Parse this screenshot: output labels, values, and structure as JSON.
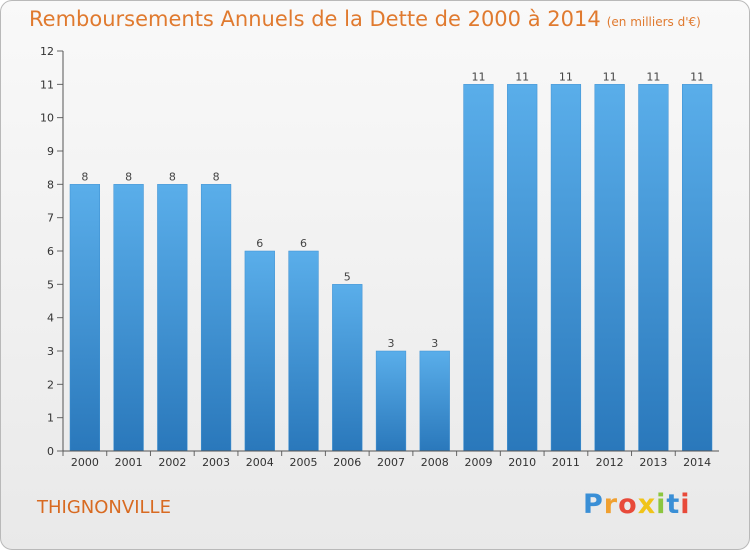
{
  "header": {
    "title": "Remboursements Annuels de la Dette de 2000 à 2014",
    "unit": "(en milliers d'€)"
  },
  "footer": {
    "city": "THIGNONVILLE",
    "logo": [
      "P",
      "r",
      "o",
      "x",
      "i",
      "t",
      "i"
    ]
  },
  "chart_data": {
    "type": "bar",
    "title": "Remboursements Annuels de la Dette de 2000 à 2014",
    "subtitle": "(en milliers d'€)",
    "xlabel": "",
    "ylabel": "",
    "categories": [
      "2000",
      "2001",
      "2002",
      "2003",
      "2004",
      "2005",
      "2006",
      "2007",
      "2008",
      "2009",
      "2010",
      "2011",
      "2012",
      "2013",
      "2014"
    ],
    "values": [
      8,
      8,
      8,
      8,
      6,
      6,
      5,
      3,
      3,
      11,
      11,
      11,
      11,
      11,
      11
    ],
    "ylim": [
      0,
      12
    ],
    "yticks": [
      0,
      1,
      2,
      3,
      4,
      5,
      6,
      7,
      8,
      9,
      10,
      11,
      12
    ],
    "grid": false,
    "bar_color": "#3c8fd1"
  }
}
